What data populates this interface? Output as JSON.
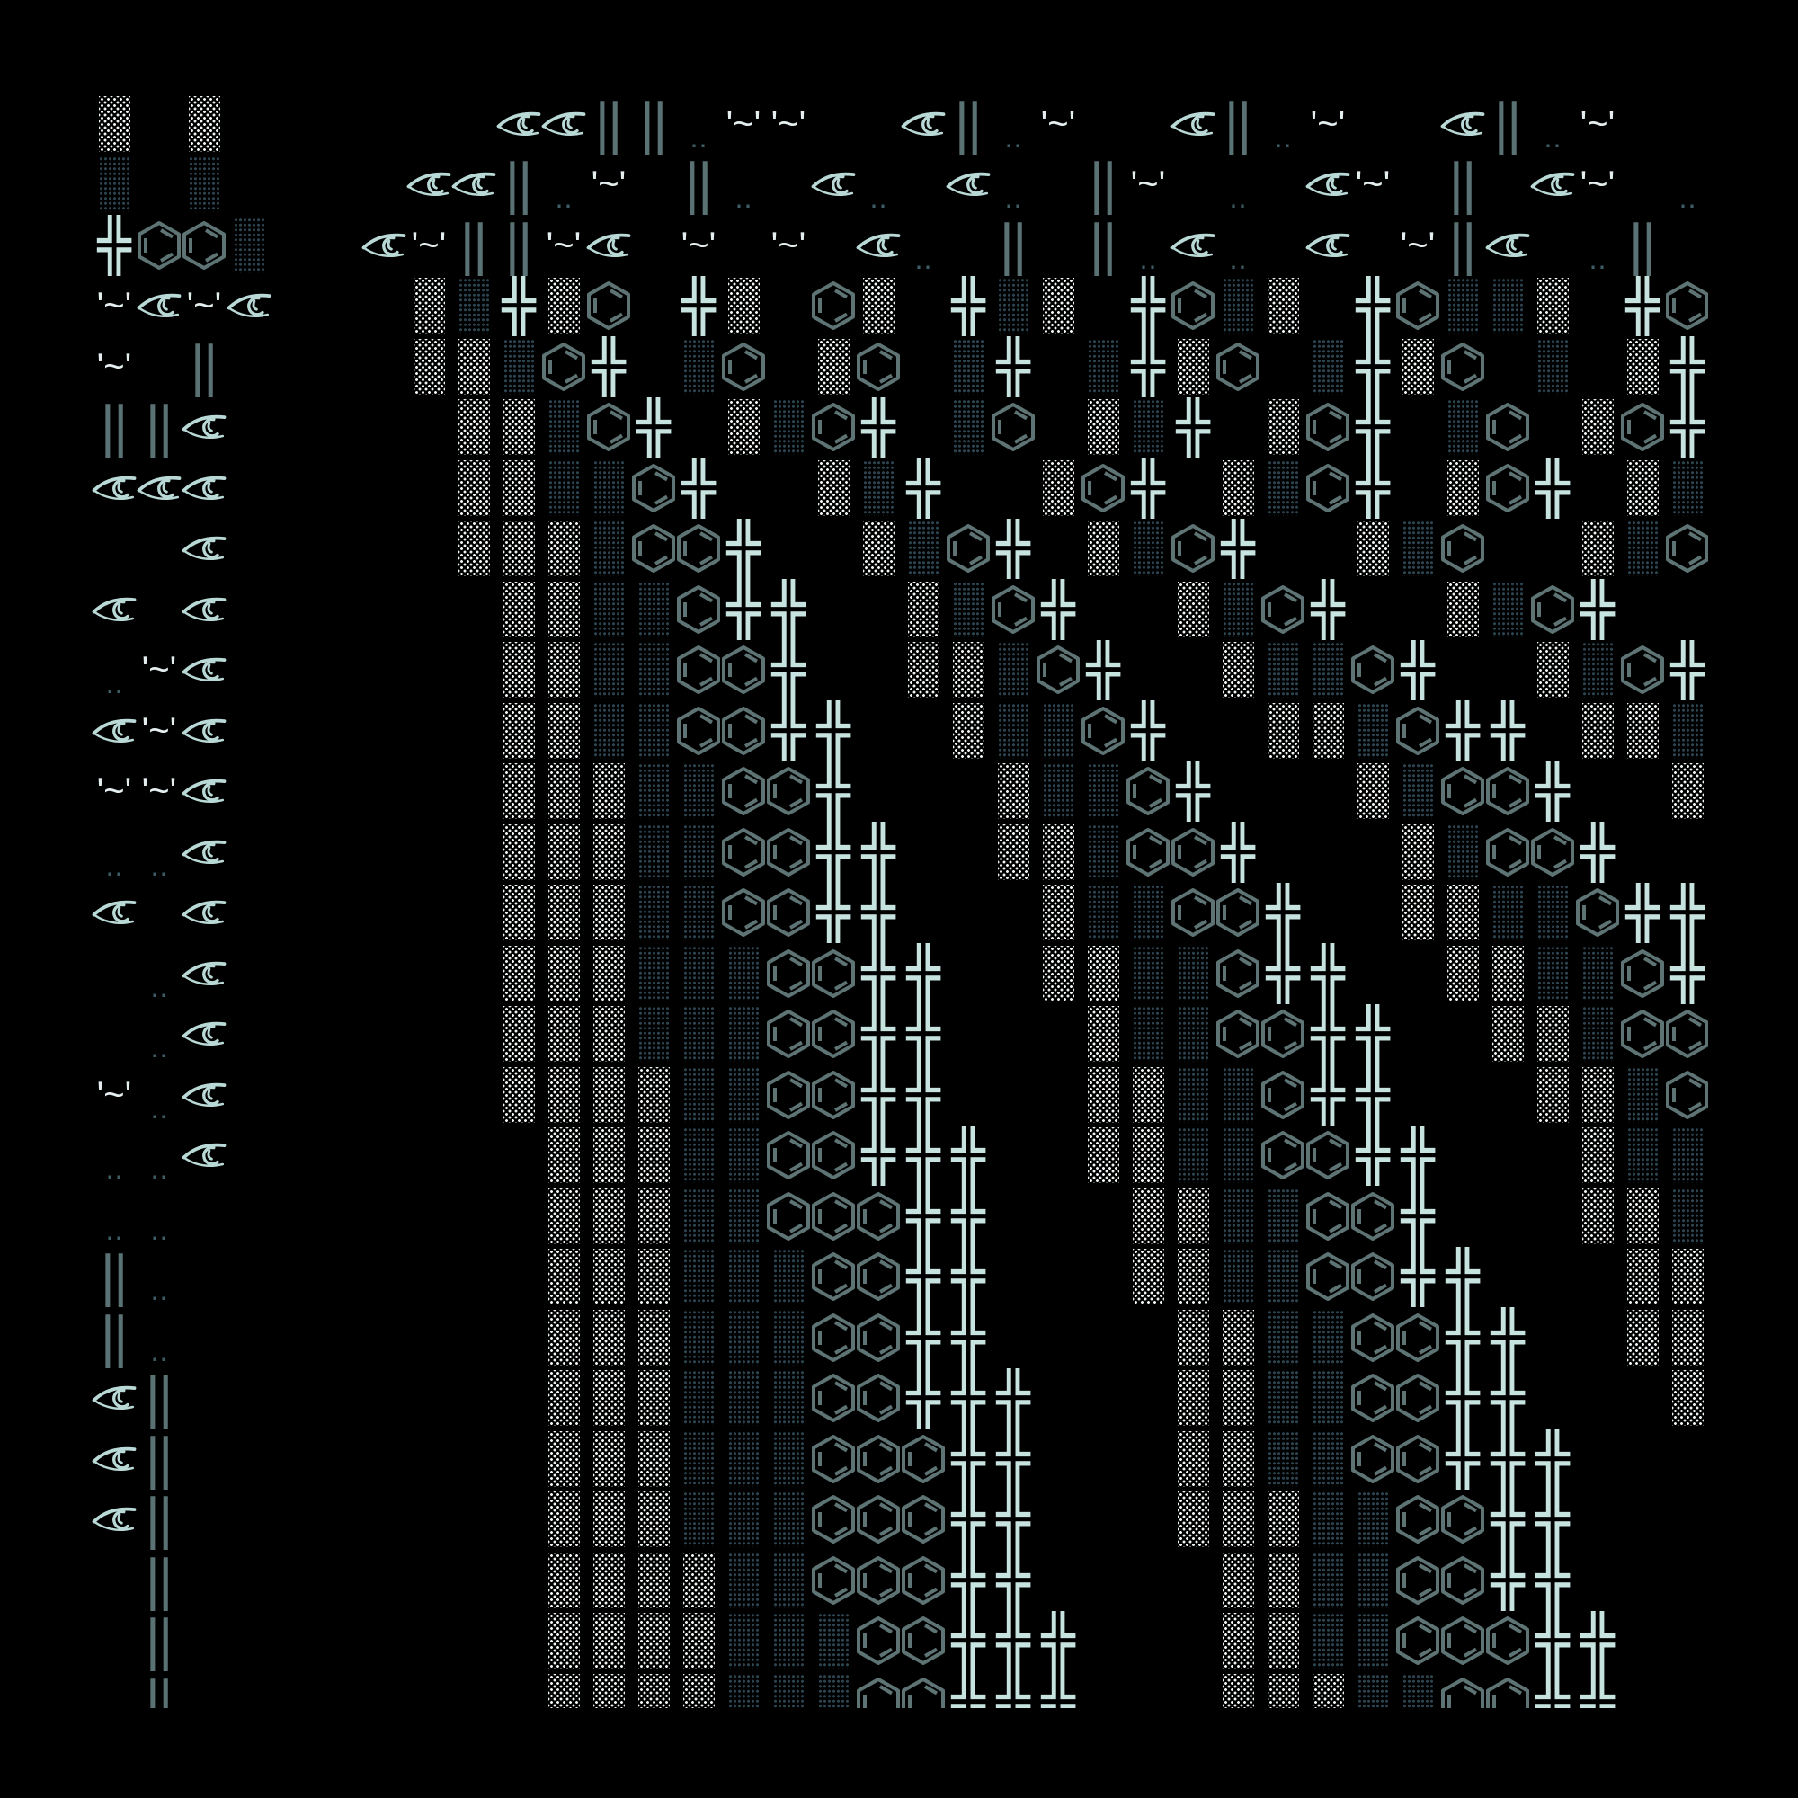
{
  "glyphs": {
    "L": "░",
    "D": "▒",
    "#": "╬",
    "H": "⌬",
    "E": "eye",
    "|": "‖",
    "~": "'~'",
    ".": "‥",
    ":": ":",
    "<": "<"
  },
  "icons": {
    "E": "eye-icon",
    "H": "benzene-hexagon-icon"
  },
  "colors": {
    "background": "#000000",
    "light_shade": "#eef4f4",
    "dark_shade": "#2c4350",
    "cross": "#c6e3e0",
    "hexagon": "#5e7474",
    "eye": "#b9d9d6",
    "bars": "#5b7274",
    "dots": "#3d5c66"
  },
  "rows": [
    "L L      EE||.~~  E|.~  E|.~  E|.~  <",
    "D D    EE|.~ |. E. E. |~ . E~ | E~ .",
    "#HHD  E~||~E ~ ~ E. | |.E. E ~|E .|",
    "~E~E   LD#LH #L HL #DL #HDL #HDDL #H",
    "~ |    LLDH# DH LH D# D#LH D#LH D L#",
    "||E     LLDH# LDH# DH LD# LH# DH LH#",
    "EEE     LLDDH#  LD#  LH# LDH# LH# LD:",
    "  E     LLLDHH#  LDH# LDH#  LDH  LDH:",
    "E E      LLDDH##  LDH#  LDH#  LDH#  :",
    ".~E      LLDDHH#  LLDH#  LDDH#  LDH#",
    "E~E      LLDDHH##  LDDH#  LLDH## LLDH",
    "~~E      LLLDDHH#   LDDH#   LDHH#  L:",
    "..E      LLLDDHH##  LLDHH#   LDHH#  :",
    "E E      LLLDDHH##   LDDHH#  LLDDH##",
    " .E      LLLDDDHH##  LLDDH##  LLDDH#:",
    " .E      LLLDDDHH##   LDDHH##  LLDHH:",
    "~.E      LLLLDDHH##   LLDDH##   LLDHH",
    "..E       LLLDDHH###  LLDDHH##   LDDH",
    "..        LLLDDHHH##   LLDDHH#   LLD:",
    "|.        LLLDDDHH##   LLDDHH##   LL:",
    "|.        LLLDDDHH##    LLDDHH##  LL:",
    "E|        LLLDDDHH###   LLDDHH##   L:",
    "E|        LLLDDDHHH##   LLDDHH###   :",
    "E|        LLLDDDHHH##   LLLDDHH##   :",
    " |        LLLLDDHHH##    LLDDHH##",
    " |        LLLLDDDHH###   LLDDHHH##",
    " |        LLLLDDDHH###   LLLDDHH##"
  ]
}
